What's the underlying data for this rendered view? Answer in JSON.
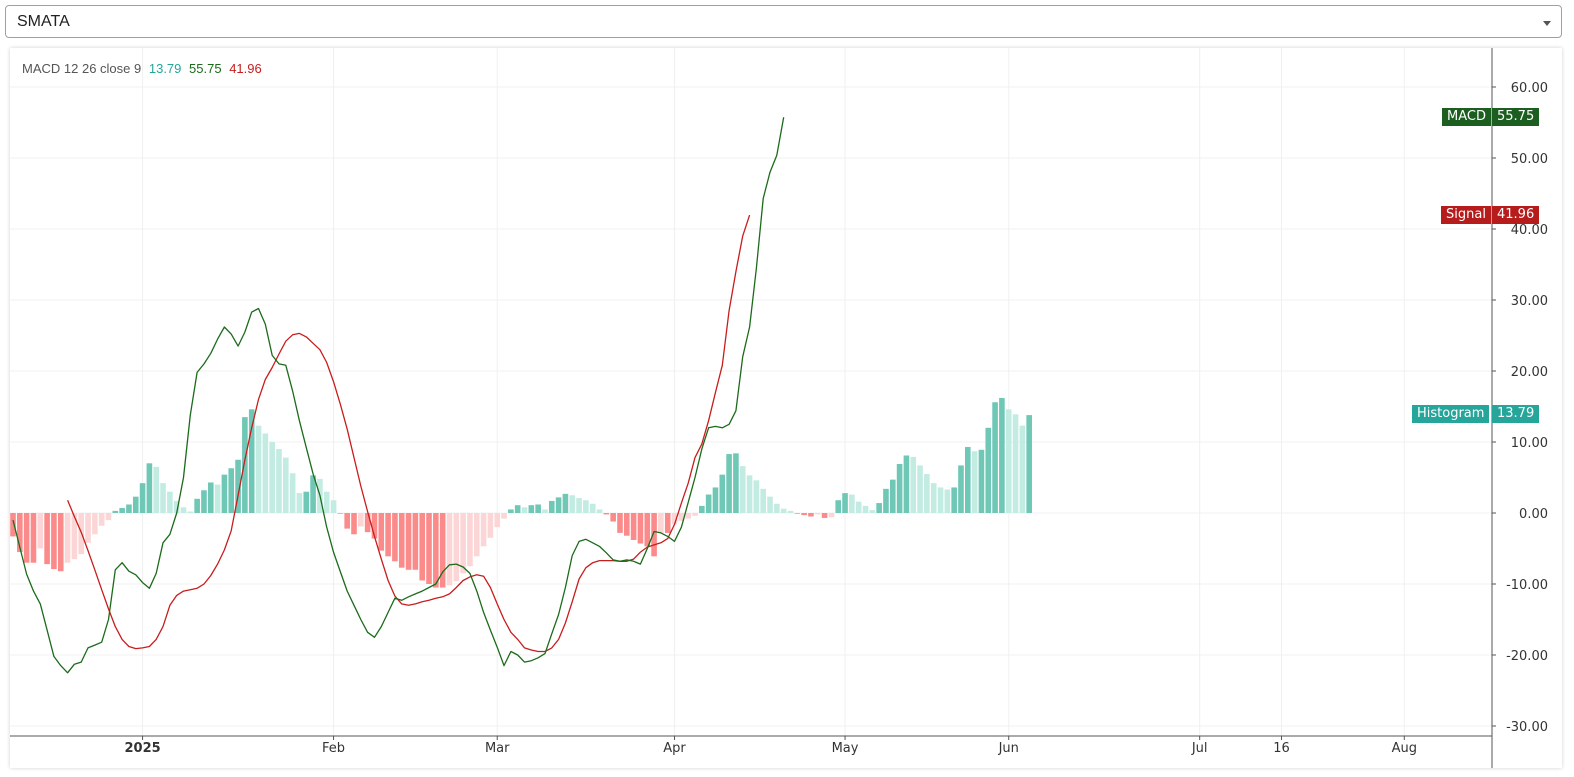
{
  "selector": {
    "value": "SMATA"
  },
  "legend": {
    "title": "MACD 12 26 close 9",
    "hist": "13.79",
    "macd": "55.75",
    "signal": "41.96"
  },
  "tags": {
    "macd": {
      "label": "MACD",
      "value": "55.75"
    },
    "signal": {
      "label": "Signal",
      "value": "41.96"
    },
    "histogram": {
      "label": "Histogram",
      "value": "13.79"
    }
  },
  "colors": {
    "macd": "#1b6b1b",
    "signal": "#c71d1d",
    "hist_pos_strong": "#6fc7b6",
    "hist_pos_weak": "#c2ebe2",
    "hist_neg_strong": "#fb8b8b",
    "hist_neg_weak": "#fcd6d6",
    "tag_macd": "#1b5e20",
    "tag_signal": "#b71c1c",
    "tag_hist": "#26a69a"
  },
  "chart_data": {
    "type": "line",
    "indicator": "MACD 12 26 close 9",
    "ylim": [
      -30,
      60
    ],
    "y_ticks": [
      "60.00",
      "50.00",
      "40.00",
      "30.00",
      "20.00",
      "10.00",
      "0.00",
      "-10.00",
      "-20.00",
      "-30.00"
    ],
    "x_ticks": [
      {
        "label": "2025",
        "index": 19,
        "bold": true
      },
      {
        "label": "Feb",
        "index": 47
      },
      {
        "label": "Mar",
        "index": 71
      },
      {
        "label": "Apr",
        "index": 97
      },
      {
        "label": "May",
        "index": 122
      },
      {
        "label": "Jun",
        "index": 146
      },
      {
        "label": "Jul",
        "index": 174
      },
      {
        "label": "16",
        "index": 186
      },
      {
        "label": "Aug",
        "index": 204
      }
    ],
    "x_count": 218,
    "series": [
      {
        "name": "MACD",
        "values": [
          -1,
          -4.8,
          -8.6,
          -11,
          -12.8,
          -16.5,
          -20.2,
          -21.5,
          -22.5,
          -21.3,
          -21,
          -19,
          -18.6,
          -18.2,
          -15,
          -8,
          -7,
          -8.2,
          -8.7,
          -9.8,
          -10.6,
          -8.5,
          -4.2,
          -3,
          0,
          5,
          13.8,
          19.8,
          21,
          22.5,
          24.5,
          26.2,
          25.2,
          23.5,
          25.5,
          28.3,
          28.8,
          26.6,
          22.2,
          21,
          20.8,
          17.2,
          13,
          9.2,
          5.5,
          2.5,
          -2,
          -5.5,
          -8.3,
          -11,
          -13,
          -15,
          -16.8,
          -17.5,
          -16,
          -14,
          -12,
          -12.3,
          -11.8,
          -11.4,
          -11,
          -10.5,
          -10,
          -8.3,
          -7.3,
          -7.2,
          -7.6,
          -8.5,
          -11,
          -14,
          -16.5,
          -18.9,
          -21.5,
          -19.5,
          -20,
          -21,
          -20.8,
          -20.4,
          -19.8,
          -17,
          -14.3,
          -10.5,
          -6,
          -4,
          -3.7,
          -4.2,
          -4.7,
          -5.6,
          -6.6,
          -6.8,
          -6.6,
          -6.8,
          -7.2,
          -5,
          -2.6,
          -2.8,
          -3.3,
          -4,
          -2,
          1.5,
          5,
          9,
          12,
          12.2,
          12,
          12.5,
          14.4,
          22,
          26.2,
          34.5,
          44.3,
          48,
          50.4,
          55.75
        ],
        "start_index": 0
      },
      {
        "name": "Signal",
        "values": [
          1.8,
          -0.5,
          -2.7,
          -5.3,
          -8,
          -10.8,
          -13.5,
          -16,
          -17.8,
          -18.8,
          -19.1,
          -19,
          -18.8,
          -17.8,
          -16,
          -13,
          -11.6,
          -11,
          -10.8,
          -10.6,
          -10,
          -8.8,
          -7.2,
          -5.2,
          -2.5,
          2.5,
          7.5,
          12,
          16,
          18.8,
          20.5,
          22.4,
          24.2,
          25.1,
          25.3,
          24.8,
          23.9,
          23,
          21.2,
          18.5,
          15.3,
          11.8,
          7.8,
          3.8,
          0.2,
          -3.3,
          -6.5,
          -9.5,
          -11.7,
          -12.8,
          -13,
          -12.8,
          -12.5,
          -12.3,
          -12,
          -11.8,
          -11.4,
          -10.5,
          -9.5,
          -9,
          -8.7,
          -8.9,
          -10.5,
          -12.8,
          -15,
          -16.8,
          -17.8,
          -19,
          -19.3,
          -19.5,
          -19.5,
          -19,
          -17.8,
          -15.5,
          -12.5,
          -9.3,
          -7.7,
          -7,
          -6.7,
          -6.7,
          -6.7,
          -6.8,
          -6.8,
          -6.5,
          -5.5,
          -4.8,
          -4.5,
          -4.2,
          -3.6,
          -1.6,
          1.4,
          4.2,
          7.8,
          9.7,
          13,
          17,
          20.8,
          28.5,
          34,
          39,
          41.96
        ],
        "start_index": 8
      },
      {
        "name": "Histogram",
        "values": [
          -3.3,
          -5.5,
          -7,
          -7,
          -5,
          -7.2,
          -7.9,
          -8.2,
          -7,
          -6.5,
          -5.8,
          -4.2,
          -3,
          -1.8,
          -1,
          0.3,
          0.7,
          1.2,
          2.3,
          4.2,
          7,
          6.5,
          4.2,
          3,
          1.7,
          0.8,
          0.2,
          2,
          3.2,
          4.3,
          4,
          5.4,
          6.3,
          7.5,
          13.5,
          14.6,
          12.3,
          11.2,
          10,
          9,
          7.8,
          5.6,
          2.8,
          3,
          5.3,
          4.8,
          3,
          1.8,
          -0.1,
          -2.2,
          -3,
          -1.9,
          -2.7,
          -3.6,
          -5.3,
          -6.1,
          -6.8,
          -7.7,
          -8,
          -8,
          -9.5,
          -10,
          -10.5,
          -10.5,
          -10.2,
          -9.6,
          -8.5,
          -7.5,
          -6.1,
          -4.7,
          -3.5,
          -2,
          -0.8,
          0.5,
          1.1,
          0.8,
          1.1,
          1.2,
          0.5,
          1.7,
          2.2,
          2.7,
          2.5,
          2.1,
          1.8,
          1.3,
          0.5,
          -0.2,
          -1.2,
          -2.8,
          -3.2,
          -3.8,
          -4.3,
          -4.7,
          -6.1,
          -2.8,
          -2.8,
          -1.6,
          -1.1,
          -0.8,
          -0.4,
          1,
          2.6,
          3.6,
          5.4,
          8.3,
          8.4,
          6.6,
          5.3,
          4.6,
          3.4,
          2.3,
          1.3,
          0.6,
          0.3,
          -0.1,
          -0.3,
          -0.5,
          -0.2,
          -0.7,
          -0.6,
          1.8,
          2.8,
          2.6,
          1.6,
          1,
          0.4,
          1.4,
          3.4,
          4.7,
          6.9,
          8.1,
          7.9,
          6.7,
          5.5,
          4.2,
          3.6,
          3.3,
          3.6,
          6.7,
          9.3,
          8.7,
          8.9,
          12,
          15.6,
          16.2,
          14.6,
          13.9,
          12.3,
          13.79
        ],
        "start_index": 0
      }
    ]
  }
}
